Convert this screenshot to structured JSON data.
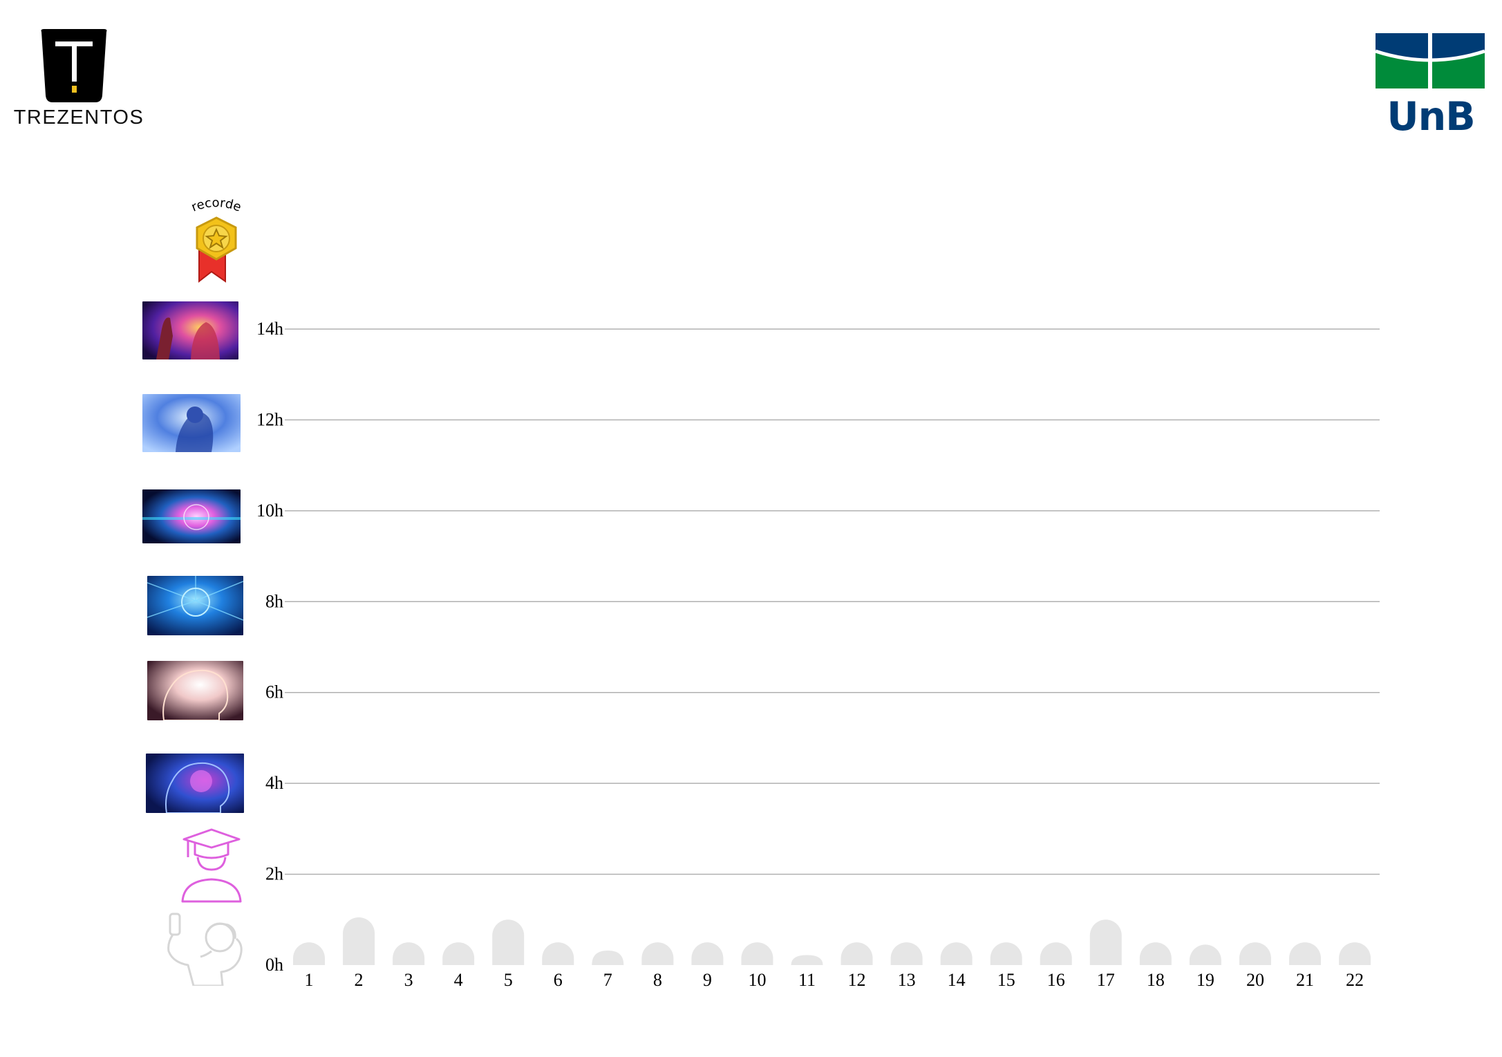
{
  "header": {
    "left_logo": {
      "name": "TREZENTOS",
      "icon": "trezentos-logo"
    },
    "right_logo": {
      "name": "UnB",
      "icon": "unb-logo",
      "colors": {
        "blue": "#003c75",
        "green": "#008b3a"
      }
    }
  },
  "record_badge": {
    "label": "recorde",
    "icon": "medal-icon"
  },
  "level_icons": [
    {
      "icon": "selfie-person-icon",
      "hours": 0,
      "colors": [
        "#e0e0e0",
        "#cccccc"
      ]
    },
    {
      "icon": "graduate-icon",
      "hours": 2,
      "colors": [
        "#e070e0",
        "#d455d4"
      ]
    },
    {
      "icon": "expanding-brain-1-image",
      "hours": 4,
      "colors": [
        "#1a3a9a",
        "#c040d0"
      ]
    },
    {
      "icon": "expanding-brain-2-image",
      "hours": 6,
      "colors": [
        "#402030",
        "#f0e0e0"
      ]
    },
    {
      "icon": "expanding-brain-3-image",
      "hours": 8,
      "colors": [
        "#0a2a6a",
        "#40c0ff"
      ]
    },
    {
      "icon": "expanding-brain-4-image",
      "hours": 10,
      "colors": [
        "#0a1a40",
        "#e060e0"
      ]
    },
    {
      "icon": "expanding-brain-5-image",
      "hours": 12,
      "colors": [
        "#3050b0",
        "#c0e0ff"
      ]
    },
    {
      "icon": "expanding-brain-6-image",
      "hours": 14,
      "colors": [
        "#3a1060",
        "#e050a0"
      ]
    }
  ],
  "chart_data": {
    "type": "bar",
    "categories": [
      "1",
      "2",
      "3",
      "4",
      "5",
      "6",
      "7",
      "8",
      "9",
      "10",
      "11",
      "12",
      "13",
      "14",
      "15",
      "16",
      "17",
      "18",
      "19",
      "20",
      "21",
      "22"
    ],
    "values": [
      0.5,
      1.05,
      0.5,
      0.5,
      1.0,
      0.5,
      0.32,
      0.5,
      0.5,
      0.5,
      0.22,
      0.5,
      0.5,
      0.5,
      0.5,
      0.5,
      1.0,
      0.5,
      0.45,
      0.5,
      0.5,
      0.5
    ],
    "y_ticks": [
      "0h",
      "2h",
      "4h",
      "6h",
      "8h",
      "10h",
      "12h",
      "14h"
    ],
    "ylim": [
      0,
      14
    ],
    "bar_color": "#e6e6e6",
    "grid_color": "#b0b0b0",
    "grid": true
  }
}
